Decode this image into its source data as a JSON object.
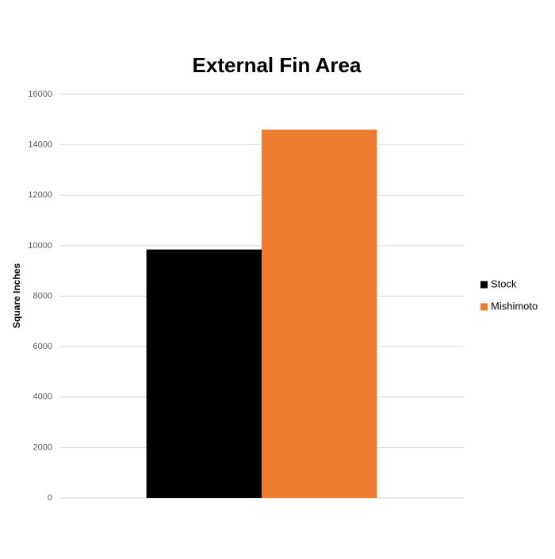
{
  "chart_data": {
    "type": "bar",
    "title": "External Fin Area",
    "y_label": "Square Inches",
    "categories": [
      null
    ],
    "series": [
      {
        "name": "Stock",
        "color": "#000000",
        "values": [
          9850
        ]
      },
      {
        "name": "Mishimoto",
        "color": "#ed7d31",
        "values": [
          14600
        ]
      }
    ],
    "ylim": [
      0,
      16000
    ],
    "yticks": [
      0,
      2000,
      4000,
      6000,
      8000,
      10000,
      12000,
      14000,
      16000
    ],
    "grid": true,
    "legend": "right"
  }
}
